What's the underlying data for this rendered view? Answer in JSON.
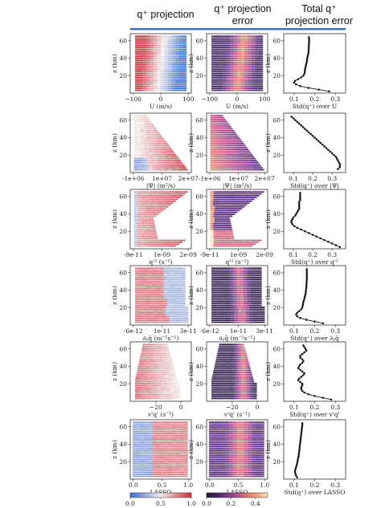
{
  "headers": {
    "col1": [
      "q⁺ projection"
    ],
    "col2": [
      "q⁺ projection",
      "error"
    ],
    "col3": [
      "Total q⁺",
      "projection error"
    ]
  },
  "header_rule_color": "#3f72b8",
  "colors": {
    "div_low": "#3b6fd0",
    "div_mid": "#f3ecec",
    "div_high": "#c8303a",
    "seq": [
      "#1a1a2e",
      "#5a2d82",
      "#b44f8c",
      "#ef8a62",
      "#fde3b8"
    ]
  },
  "colorbars": [
    {
      "ticks": [
        "0.0",
        "0.5",
        "1.0"
      ],
      "tick_values": [
        0.0,
        0.5,
        1.0
      ],
      "scale": "diverging"
    },
    {
      "ticks": [
        "0.0",
        "0.2",
        "0.4"
      ],
      "tick_values": [
        0.0,
        0.2,
        0.4
      ],
      "range": [
        0,
        0.5
      ],
      "scale": "sequential"
    }
  ],
  "chart_data": [
    {
      "row": 0,
      "type": "line",
      "ylabel": "z (km)",
      "yticks": [
        "20",
        "40",
        "60"
      ],
      "heat_xlabel": "U (m/s)",
      "heat_xticks": [
        "−100",
        "0",
        "100"
      ],
      "line_xlabel": "Std(q⁺) over U",
      "line_xticks": [
        "0.1",
        "0.2",
        "0.3"
      ],
      "line_xlim": [
        0.05,
        0.35
      ],
      "z": [
        2,
        4,
        6,
        8,
        10,
        12,
        14,
        16,
        18,
        20,
        22,
        24,
        26,
        28,
        30,
        32,
        34,
        36,
        38,
        40,
        42,
        44,
        46,
        48,
        50,
        52,
        54,
        56,
        58,
        60,
        62,
        64
      ],
      "x": [
        0.27,
        0.22,
        0.17,
        0.13,
        0.11,
        0.1,
        0.105,
        0.12,
        0.135,
        0.145,
        0.15,
        0.152,
        0.153,
        0.154,
        0.156,
        0.158,
        0.16,
        0.162,
        0.163,
        0.164,
        0.166,
        0.168,
        0.17,
        0.17,
        0.171,
        0.171,
        0.172,
        0.172,
        0.173,
        0.173,
        0.173,
        0.172
      ]
    },
    {
      "row": 1,
      "type": "line",
      "ylabel": "z (km)",
      "yticks": [
        "20",
        "40",
        "60"
      ],
      "heat_xlabel": "|Ψ| (m²/s)",
      "heat_xticks": [
        "-1e+06",
        "1e+07",
        "2e+07"
      ],
      "line_xlabel": "Std(q⁺) over |Ψ|",
      "line_xticks": [
        "0.1",
        "0.2",
        "0.3"
      ],
      "line_xlim": [
        0.05,
        0.37
      ],
      "z": [
        4,
        6,
        8,
        10,
        12,
        14,
        16,
        18,
        20,
        22,
        24,
        26,
        28,
        30,
        32,
        34,
        36,
        38,
        40,
        42,
        44,
        46,
        48,
        50,
        52,
        54,
        56,
        58,
        60,
        62,
        64
      ],
      "x": [
        0.33,
        0.34,
        0.34,
        0.34,
        0.335,
        0.33,
        0.325,
        0.32,
        0.31,
        0.3,
        0.29,
        0.28,
        0.27,
        0.26,
        0.25,
        0.24,
        0.23,
        0.22,
        0.21,
        0.2,
        0.19,
        0.18,
        0.17,
        0.16,
        0.15,
        0.14,
        0.13,
        0.12,
        0.11,
        0.1,
        0.09
      ]
    },
    {
      "row": 2,
      "type": "line",
      "ylabel": "z (km)",
      "yticks": [
        "20",
        "40",
        "60"
      ],
      "heat_xlabel": "q'² (s⁻²)",
      "heat_xticks": [
        "-9e-11",
        "1e-09",
        "2e-09"
      ],
      "line_xlabel": "Std(q⁺) over q'²",
      "line_xticks": [
        "0.1",
        "0.2",
        "0.3"
      ],
      "line_xlim": [
        0.05,
        0.37
      ],
      "z": [
        2,
        4,
        6,
        8,
        10,
        12,
        14,
        16,
        18,
        20,
        22,
        24,
        26,
        28,
        30,
        32,
        34,
        36,
        38,
        40,
        42,
        44,
        46,
        48,
        50,
        52,
        54,
        56,
        58,
        60,
        62,
        64
      ],
      "x": [
        0.34,
        0.32,
        0.3,
        0.28,
        0.26,
        0.24,
        0.22,
        0.2,
        0.18,
        0.16,
        0.14,
        0.12,
        0.105,
        0.095,
        0.09,
        0.09,
        0.095,
        0.1,
        0.11,
        0.115,
        0.12,
        0.125,
        0.13,
        0.13,
        0.13,
        0.13,
        0.13,
        0.135,
        0.135,
        0.135,
        0.135,
        0.135
      ]
    },
    {
      "row": 3,
      "type": "line",
      "ylabel": "z (km)",
      "yticks": [
        "20",
        "40",
        "60"
      ],
      "heat_xlabel": "∂ᵧq̄ (m⁻¹s⁻¹)",
      "heat_xticks": [
        "-6e-12",
        "1e-11",
        "3e-11"
      ],
      "line_xlabel": "Std(q⁺) over ∂ᵧq̄",
      "line_xticks": [
        "0.1",
        "0.2",
        "0.3"
      ],
      "line_xlim": [
        0.05,
        0.35
      ],
      "z": [
        2,
        4,
        6,
        8,
        10,
        12,
        14,
        16,
        18,
        20,
        22,
        24,
        26,
        28,
        30,
        32,
        34,
        36,
        38,
        40,
        42,
        44,
        46,
        48,
        50,
        52,
        54,
        56,
        58,
        60,
        62,
        64
      ],
      "x": [
        0.24,
        0.2,
        0.16,
        0.13,
        0.115,
        0.11,
        0.115,
        0.125,
        0.135,
        0.14,
        0.142,
        0.143,
        0.145,
        0.147,
        0.15,
        0.152,
        0.154,
        0.156,
        0.157,
        0.158,
        0.159,
        0.16,
        0.16,
        0.161,
        0.161,
        0.162,
        0.162,
        0.162,
        0.162,
        0.162,
        0.162,
        0.162
      ]
    },
    {
      "row": 4,
      "type": "line",
      "ylabel": "z (km)",
      "yticks": [
        "20",
        "40",
        "60"
      ],
      "heat_xlabel": "v'q' (s⁻¹)",
      "heat_xticks": [
        "−20",
        "0"
      ],
      "line_xlabel": "Std(q⁺) over v'q'",
      "line_xticks": [
        "0.1",
        "0.2",
        "0.3"
      ],
      "line_xlim": [
        0.05,
        0.35
      ],
      "z": [
        2,
        4,
        6,
        8,
        10,
        12,
        14,
        16,
        18,
        20,
        22,
        24,
        26,
        28,
        30,
        32,
        34,
        36,
        38,
        40,
        42,
        44,
        46,
        48,
        50,
        52,
        54,
        56,
        58,
        60,
        62,
        64
      ],
      "x": [
        0.28,
        0.24,
        0.2,
        0.17,
        0.15,
        0.14,
        0.135,
        0.135,
        0.14,
        0.14,
        0.13,
        0.12,
        0.125,
        0.135,
        0.145,
        0.15,
        0.14,
        0.13,
        0.12,
        0.125,
        0.13,
        0.14,
        0.145,
        0.14,
        0.13,
        0.13,
        0.14,
        0.15,
        0.16,
        0.155,
        0.15,
        0.145
      ]
    },
    {
      "row": 5,
      "type": "line",
      "ylabel": "z (km)",
      "yticks": [
        "20",
        "40",
        "60"
      ],
      "heat_xlabel": "LASSO",
      "heat_xticks": [
        "0.0",
        "0.5",
        "1.0"
      ],
      "line_xlabel": "Std(q⁺) over LASSO",
      "line_xticks": [
        "0.1",
        "0.2",
        "0.3"
      ],
      "line_xlim": [
        0.05,
        0.35
      ],
      "z": [
        2,
        4,
        6,
        8,
        10,
        12,
        14,
        16,
        18,
        20,
        22,
        24,
        26,
        28,
        30,
        32,
        34,
        36,
        38,
        40,
        42,
        44,
        46,
        48,
        50,
        52,
        54,
        56,
        58,
        60,
        62,
        64
      ],
      "x": [
        0.115,
        0.11,
        0.107,
        0.105,
        0.105,
        0.108,
        0.11,
        0.113,
        0.115,
        0.117,
        0.118,
        0.12,
        0.122,
        0.123,
        0.124,
        0.125,
        0.126,
        0.127,
        0.128,
        0.129,
        0.13,
        0.131,
        0.132,
        0.133,
        0.134,
        0.135,
        0.136,
        0.137,
        0.138,
        0.139,
        0.14,
        0.14
      ]
    }
  ]
}
